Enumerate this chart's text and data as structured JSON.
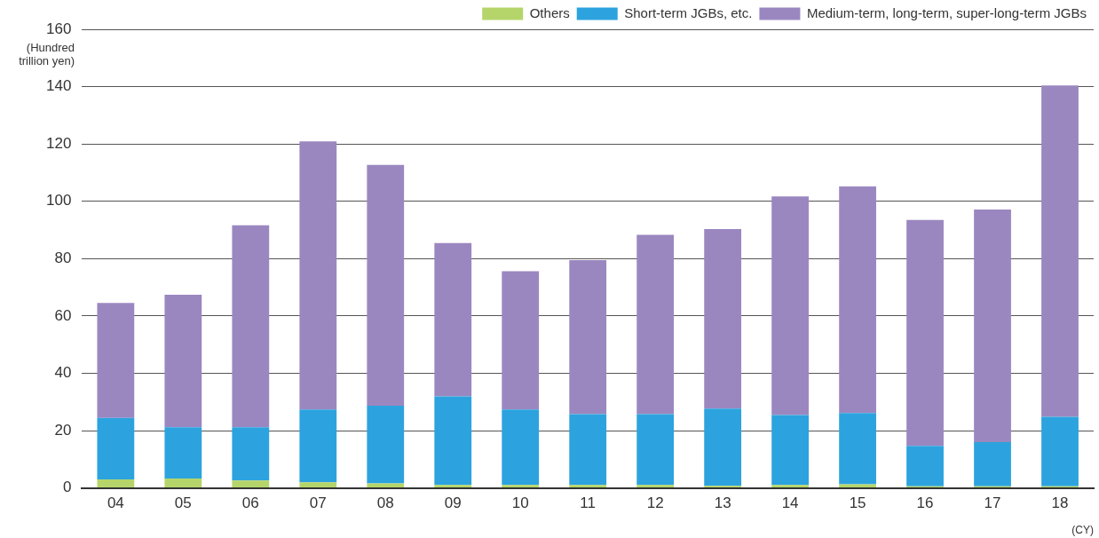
{
  "chart_data": {
    "type": "bar",
    "stacked": true,
    "categories": [
      "04",
      "05",
      "06",
      "07",
      "08",
      "09",
      "10",
      "11",
      "12",
      "13",
      "14",
      "15",
      "16",
      "17",
      "18"
    ],
    "series": [
      {
        "name": "Others",
        "color": "#b5d56a",
        "values": [
          3,
          3.3,
          2.6,
          2,
          1.6,
          1,
          1,
          1,
          1,
          0.7,
          1,
          1.3,
          0.6,
          0.6,
          0.6
        ]
      },
      {
        "name": "Short-term JGBs, etc.",
        "color": "#2ca3de",
        "values": [
          21.4,
          17.9,
          18.6,
          25.4,
          27.1,
          30.9,
          26.4,
          24.7,
          24.7,
          27.0,
          24.4,
          24.8,
          14.1,
          15.4,
          24.2
        ]
      },
      {
        "name": "Medium-term, long-term, super-long-term JGBs",
        "color": "#9b87c0",
        "values": [
          40.1,
          46.2,
          70.4,
          93.5,
          84.0,
          53.5,
          48.2,
          53.8,
          62.6,
          62.6,
          76.3,
          79.1,
          78.8,
          81.1,
          115.6
        ]
      }
    ],
    "ylim": [
      0,
      160
    ],
    "yticks": [
      0,
      20,
      40,
      60,
      80,
      100,
      120,
      140,
      160
    ],
    "grid": "y",
    "legend": "top right",
    "ylabel": "(Hundred\ntrillion yen)",
    "xlabel": "(CY)"
  }
}
